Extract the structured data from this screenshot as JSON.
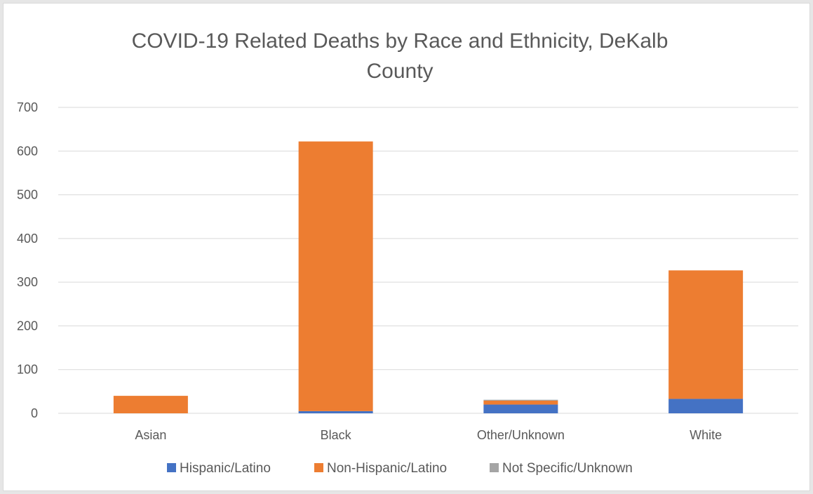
{
  "chart_data": {
    "type": "bar",
    "stacked": true,
    "title": "COVID-19 Related Deaths by Race and Ethnicity, DeKalb County",
    "title_lines": [
      "COVID-19 Related Deaths by Race and Ethnicity, DeKalb",
      "County"
    ],
    "categories": [
      "Asian",
      "Black",
      "Other/Unknown",
      "White"
    ],
    "series": [
      {
        "name": "Hispanic/Latino",
        "color": "#4472C4",
        "values": [
          0,
          5,
          20,
          33
        ]
      },
      {
        "name": "Non-Hispanic/Latino",
        "color": "#ED7D31",
        "values": [
          40,
          617,
          9,
          294
        ]
      },
      {
        "name": "Not Specific/Unknown",
        "color": "#A5A5A5",
        "values": [
          0,
          0,
          2,
          0
        ]
      }
    ],
    "ylim": [
      0,
      700
    ],
    "yticks": [
      0,
      100,
      200,
      300,
      400,
      500,
      600,
      700
    ],
    "grid": true,
    "legend_position": "bottom",
    "xlabel": "",
    "ylabel": ""
  }
}
